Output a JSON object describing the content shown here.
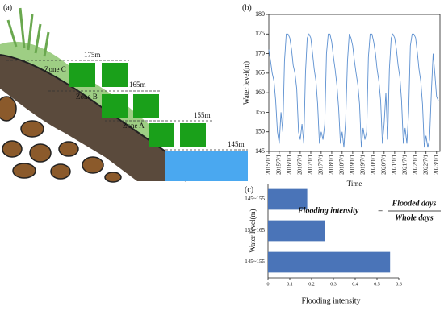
{
  "panel_a": {
    "label": "(a)",
    "zones": [
      "Zone C",
      "Zone B",
      "Zone A"
    ],
    "levels": [
      "175m",
      "165m",
      "155m",
      "145m"
    ]
  },
  "chart_data": [
    {
      "type": "line",
      "panel_label": "(b)",
      "y_label": "Water level(m)",
      "x_label": "Time",
      "color": "#5b8fd0",
      "ylim": [
        145,
        180
      ],
      "yticks": [
        145,
        150,
        155,
        160,
        165,
        170,
        175,
        180
      ],
      "xlim": [
        "2015/1/1",
        "2023/3/1"
      ],
      "xticks": [
        "2015/1/1",
        "2015/7/1",
        "2016/1/1",
        "2016/7/1",
        "2017/1/1",
        "2017/7/1",
        "2018/1/1",
        "2018/7/1",
        "2019/1/1",
        "2019/7/1",
        "2020/1/1",
        "2020/7/1",
        "2021/1/1",
        "2021/7/1",
        "2022/1/1",
        "2022/7/1",
        "2023/1/1"
      ],
      "x": [
        "2015/1/1",
        "2015/2/1",
        "2015/3/1",
        "2015/4/1",
        "2015/5/1",
        "2015/6/1",
        "2015/7/1",
        "2015/8/1",
        "2015/9/1",
        "2015/10/1",
        "2015/11/1",
        "2015/12/1",
        "2016/1/1",
        "2016/2/1",
        "2016/3/1",
        "2016/4/1",
        "2016/5/1",
        "2016/6/1",
        "2016/7/1",
        "2016/8/1",
        "2016/9/1",
        "2016/10/1",
        "2016/11/1",
        "2016/12/1",
        "2017/1/1",
        "2017/2/1",
        "2017/3/1",
        "2017/4/1",
        "2017/5/1",
        "2017/6/1",
        "2017/7/1",
        "2017/8/1",
        "2017/9/1",
        "2017/10/1",
        "2017/11/1",
        "2017/12/1",
        "2018/1/1",
        "2018/2/1",
        "2018/3/1",
        "2018/4/1",
        "2018/5/1",
        "2018/6/1",
        "2018/7/1",
        "2018/8/1",
        "2018/9/1",
        "2018/10/1",
        "2018/11/1",
        "2018/12/1",
        "2019/1/1",
        "2019/2/1",
        "2019/3/1",
        "2019/4/1",
        "2019/5/1",
        "2019/6/1",
        "2019/7/1",
        "2019/8/1",
        "2019/9/1",
        "2019/10/1",
        "2019/11/1",
        "2019/12/1",
        "2020/1/1",
        "2020/2/1",
        "2020/3/1",
        "2020/4/1",
        "2020/5/1",
        "2020/6/1",
        "2020/7/1",
        "2020/8/1",
        "2020/9/1",
        "2020/10/1",
        "2020/11/1",
        "2020/12/1",
        "2021/1/1",
        "2021/2/1",
        "2021/3/1",
        "2021/4/1",
        "2021/5/1",
        "2021/6/1",
        "2021/7/1",
        "2021/8/1",
        "2021/9/1",
        "2021/10/1",
        "2021/11/1",
        "2021/12/1",
        "2022/1/1",
        "2022/2/1",
        "2022/3/1",
        "2022/4/1",
        "2022/5/1",
        "2022/6/1",
        "2022/7/1",
        "2022/8/1",
        "2022/9/1",
        "2022/10/1",
        "2022/11/1",
        "2022/12/1",
        "2023/1/1",
        "2023/2/1"
      ],
      "values": [
        171,
        168,
        165,
        163,
        158,
        150,
        147,
        155,
        150,
        168,
        175,
        175,
        174,
        171,
        167,
        165,
        161,
        150,
        148,
        152,
        147,
        165,
        174,
        175,
        174,
        170,
        166,
        163,
        157,
        147,
        150,
        148,
        152,
        170,
        175,
        175,
        173,
        169,
        166,
        162,
        156,
        147,
        150,
        146,
        153,
        168,
        175,
        174,
        172,
        168,
        165,
        162,
        157,
        146,
        151,
        148,
        150,
        169,
        175,
        175,
        173,
        170,
        166,
        163,
        158,
        147,
        152,
        160,
        148,
        166,
        174,
        175,
        174,
        171,
        167,
        164,
        158,
        147,
        151,
        147,
        155,
        172,
        175,
        175,
        174,
        170,
        166,
        163,
        157,
        146,
        149,
        146,
        148,
        160,
        170,
        165,
        159,
        158
      ]
    },
    {
      "type": "barh",
      "panel_label": "(c)",
      "y_label": "Water level(m)",
      "x_label": "Flooding intensity",
      "color": "#4a74b8",
      "categories": [
        "145~155",
        "155~165",
        "145~155"
      ],
      "values": [
        0.18,
        0.26,
        0.56
      ],
      "xlim": [
        0,
        0.6
      ],
      "xticks": [
        0,
        0.1,
        0.2,
        0.3,
        0.4,
        0.5,
        0.6
      ],
      "formula": {
        "lhs": "Flooding intensity",
        "equals": "=",
        "numerator": "Flooded days",
        "denominator": "Whole days"
      }
    }
  ]
}
